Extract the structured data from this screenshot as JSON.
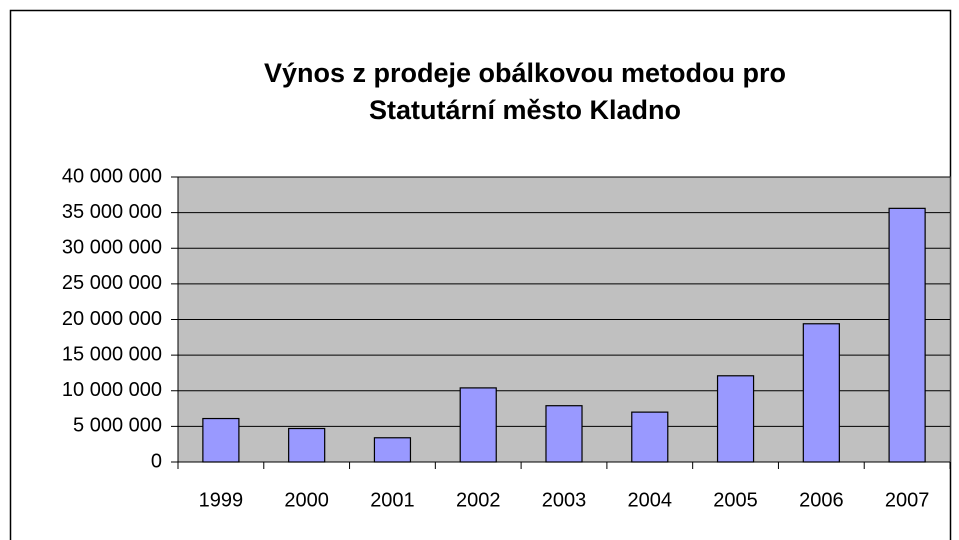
{
  "chart_data": {
    "type": "bar",
    "title": [
      "Výnos z prodeje obálkovou metodou pro",
      "Statutární město Kladno"
    ],
    "categories": [
      "1999",
      "2000",
      "2001",
      "2002",
      "2003",
      "2004",
      "2005",
      "2006",
      "2007"
    ],
    "values": [
      6100000,
      4700000,
      3400000,
      10400000,
      7900000,
      7000000,
      12100000,
      19400000,
      35600000
    ],
    "color": "#9999ff",
    "ylim": [
      0,
      40000000
    ],
    "yticks": [
      0,
      {
        "value": 5000000,
        "label": "5 000 000"
      },
      {
        "value": 10000000,
        "label": "10 000 000"
      },
      {
        "value": 15000000,
        "label": "15 000 000"
      },
      {
        "value": 20000000,
        "label": "20 000 000"
      },
      {
        "value": 25000000,
        "label": "25 000 000"
      },
      {
        "value": 30000000,
        "label": "30 000 000"
      },
      {
        "value": 35000000,
        "label": "35 000 000"
      },
      {
        "value": 40000000,
        "label": "40 000 000"
      }
    ],
    "grid": true
  }
}
